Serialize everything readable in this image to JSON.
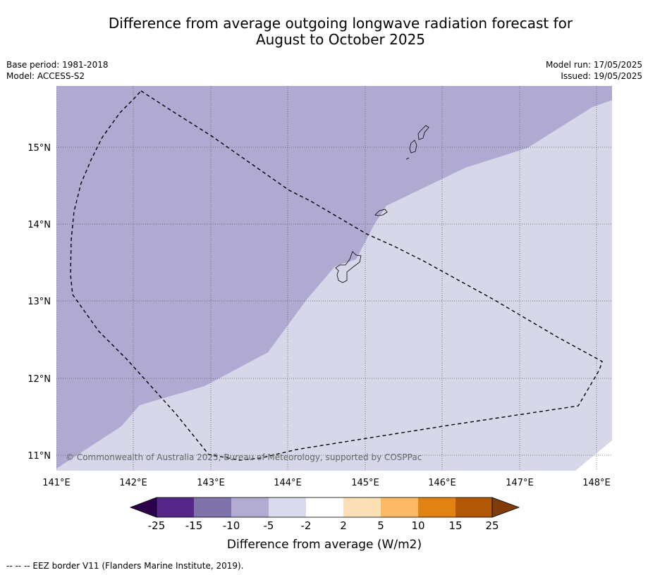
{
  "title_line1": "Difference from average outgoing longwave radiation forecast for",
  "title_line2": "August to October 2025",
  "base_period": "Base period: 1981-2018",
  "model": "Model: ACCESS-S2",
  "model_run": "Model run: 17/05/2025",
  "issued": "Issued: 19/05/2025",
  "copyright": "© Commonwealth of Australia 2025, Bureau of Meteorology, supported by COSPPac",
  "footnote": "--  --  -- EEZ border V11 (Flanders Marine Institute, 2019).",
  "map": {
    "lon_labels": [
      "141°E",
      "142°E",
      "143°E",
      "144°E",
      "145°E",
      "146°E",
      "147°E",
      "148°E"
    ],
    "lat_labels": [
      "15°N",
      "14°N",
      "13°N",
      "12°N",
      "11°N"
    ],
    "colors": {
      "band_minus10_minus5": "#b0aad2",
      "band_minus5_minus2": "#d7d7ea"
    }
  },
  "colorbar": {
    "label": "Difference from average (W/m2)",
    "ticks": [
      "-25",
      "-15",
      "-10",
      "-5",
      "-2",
      "2",
      "5",
      "10",
      "15",
      "25"
    ],
    "colors": [
      "#2d004b",
      "#542788",
      "#8073ac",
      "#b2abd2",
      "#d8daeb",
      "#ffffff",
      "#fee0b6",
      "#fdb863",
      "#e08214",
      "#b35806",
      "#7f3b08"
    ]
  }
}
